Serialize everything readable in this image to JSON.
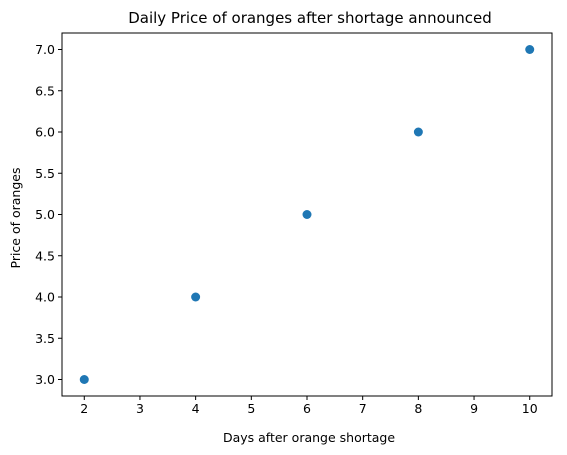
{
  "chart_data": {
    "type": "scatter",
    "title": "Daily Price of oranges after shortage announced",
    "xlabel": "Days after orange shortage",
    "ylabel": "Price of oranges",
    "x": [
      2,
      4,
      6,
      8,
      10
    ],
    "y": [
      3,
      4,
      5,
      6,
      7
    ],
    "xlim": [
      1.6,
      10.4
    ],
    "ylim": [
      2.8,
      7.2
    ],
    "xticks": [
      2,
      3,
      4,
      5,
      6,
      7,
      8,
      9,
      10
    ],
    "xtick_labels": [
      "2",
      "3",
      "4",
      "5",
      "6",
      "7",
      "8",
      "9",
      "10"
    ],
    "yticks": [
      3.0,
      3.5,
      4.0,
      4.5,
      5.0,
      5.5,
      6.0,
      6.5,
      7.0
    ],
    "ytick_labels": [
      "3.0",
      "3.5",
      "4.0",
      "4.5",
      "5.0",
      "5.5",
      "6.0",
      "6.5",
      "7.0"
    ],
    "grid": false,
    "legend": "none",
    "marker_color": "#1f77b4"
  }
}
